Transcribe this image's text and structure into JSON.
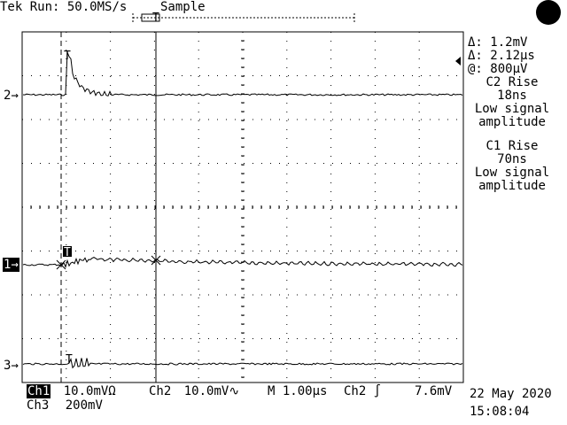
{
  "header": {
    "brand": "Tek",
    "status": "Run: 50.0MS/s",
    "mode": "Sample"
  },
  "cursor_readout": {
    "delta_v": "Δ: 1.2mV",
    "delta_t": "Δ: 2.12µs",
    "at_v": "@: 800µV"
  },
  "measurements": [
    {
      "title": "C2 Rise",
      "value": "18ns",
      "note1": "Low signal",
      "note2": "amplitude"
    },
    {
      "title": "C1 Rise",
      "value": "70ns",
      "note1": "Low signal",
      "note2": "amplitude"
    }
  ],
  "channel_markers": {
    "ch2": "2",
    "ch1": "1",
    "ch3": "3"
  },
  "trigger_marker": "T",
  "footer": {
    "ch1_label": "Ch1",
    "ch1_scale": "10.0mVΩ",
    "ch2_label": "Ch2",
    "ch2_scale": "10.0mV",
    "timebase": "M 1.00µs",
    "trigger": "Ch2 ∫",
    "trigger_level": "7.6mV",
    "ch3_label": "Ch3",
    "ch3_scale": "200mV",
    "date": "22 May 2020",
    "time": "15:08:04"
  },
  "colors": {
    "trace": "#000000",
    "background": "#ffffff"
  }
}
